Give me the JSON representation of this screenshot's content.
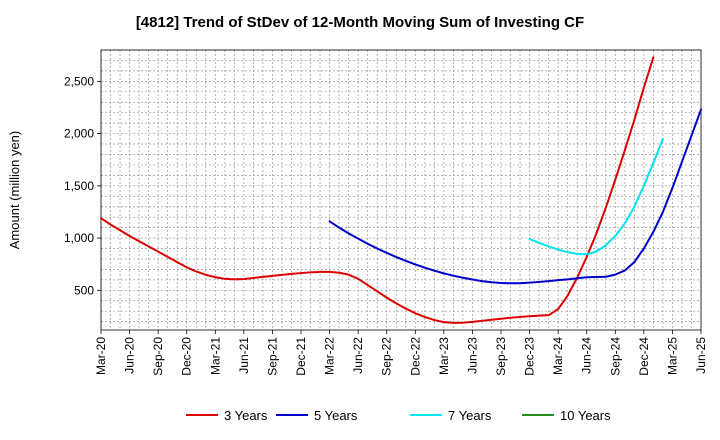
{
  "chart_data": {
    "type": "line",
    "title": "[4812]  Trend of StDev of 12-Month Moving Sum of Investing CF",
    "ylabel": "Amount (million yen)",
    "xlabel": "",
    "x_ticks": [
      "Mar-20",
      "Jun-20",
      "Sep-20",
      "Dec-20",
      "Mar-21",
      "Jun-21",
      "Sep-21",
      "Dec-21",
      "Mar-22",
      "Jun-22",
      "Sep-22",
      "Dec-22",
      "Mar-23",
      "Jun-23",
      "Sep-23",
      "Dec-23",
      "Mar-24",
      "Jun-24",
      "Sep-24",
      "Dec-24",
      "Mar-25",
      "Jun-25"
    ],
    "y_ticks": [
      500,
      1000,
      1500,
      2000,
      2500
    ],
    "y_tick_labels": [
      "500",
      "1,000",
      "1,500",
      "2,000",
      "2,500"
    ],
    "ylim": [
      120,
      2800
    ],
    "grid": true,
    "legend_position": "bottom",
    "series": [
      {
        "name": "3 Years",
        "color": "#dd0000",
        "points": [
          [
            "Mar-20",
            1190
          ],
          [
            "Apr-20",
            1130
          ],
          [
            "May-20",
            1075
          ],
          [
            "Jun-20",
            1020
          ],
          [
            "Jul-20",
            970
          ],
          [
            "Aug-20",
            920
          ],
          [
            "Sep-20",
            870
          ],
          [
            "Oct-20",
            820
          ],
          [
            "Nov-20",
            770
          ],
          [
            "Dec-20",
            720
          ],
          [
            "Jan-21",
            680
          ],
          [
            "Feb-21",
            648
          ],
          [
            "Mar-21",
            625
          ],
          [
            "Apr-21",
            610
          ],
          [
            "May-21",
            605
          ],
          [
            "Jun-21",
            608
          ],
          [
            "Jul-21",
            618
          ],
          [
            "Aug-21",
            628
          ],
          [
            "Sep-21",
            638
          ],
          [
            "Oct-21",
            648
          ],
          [
            "Nov-21",
            657
          ],
          [
            "Dec-21",
            665
          ],
          [
            "Jan-22",
            672
          ],
          [
            "Feb-22",
            676
          ],
          [
            "Mar-22",
            676
          ],
          [
            "Apr-22",
            668
          ],
          [
            "May-22",
            650
          ],
          [
            "Jun-22",
            610
          ],
          [
            "Jul-22",
            550
          ],
          [
            "Aug-22",
            490
          ],
          [
            "Sep-22",
            430
          ],
          [
            "Oct-22",
            375
          ],
          [
            "Nov-22",
            325
          ],
          [
            "Dec-22",
            280
          ],
          [
            "Jan-23",
            245
          ],
          [
            "Feb-23",
            215
          ],
          [
            "Mar-23",
            195
          ],
          [
            "Apr-23",
            188
          ],
          [
            "May-23",
            190
          ],
          [
            "Jun-23",
            198
          ],
          [
            "Jul-23",
            208
          ],
          [
            "Aug-23",
            218
          ],
          [
            "Sep-23",
            228
          ],
          [
            "Oct-23",
            237
          ],
          [
            "Nov-23",
            245
          ],
          [
            "Dec-23",
            252
          ],
          [
            "Jan-24",
            258
          ],
          [
            "Feb-24",
            262
          ],
          [
            "Mar-24",
            320
          ],
          [
            "Apr-24",
            450
          ],
          [
            "May-24",
            620
          ],
          [
            "Jun-24",
            820
          ],
          [
            "Jul-24",
            1040
          ],
          [
            "Aug-24",
            1290
          ],
          [
            "Sep-24",
            1560
          ],
          [
            "Oct-24",
            1840
          ],
          [
            "Nov-24",
            2130
          ],
          [
            "Dec-24",
            2440
          ],
          [
            "Jan-25",
            2730
          ]
        ]
      },
      {
        "name": "5 Years",
        "color": "#0000cc",
        "points": [
          [
            "Mar-22",
            1160
          ],
          [
            "Apr-22",
            1100
          ],
          [
            "May-22",
            1045
          ],
          [
            "Jun-22",
            995
          ],
          [
            "Jul-22",
            945
          ],
          [
            "Aug-22",
            900
          ],
          [
            "Sep-22",
            858
          ],
          [
            "Oct-22",
            818
          ],
          [
            "Nov-22",
            782
          ],
          [
            "Dec-22",
            748
          ],
          [
            "Jan-23",
            716
          ],
          [
            "Feb-23",
            688
          ],
          [
            "Mar-23",
            662
          ],
          [
            "Apr-23",
            640
          ],
          [
            "May-23",
            620
          ],
          [
            "Jun-23",
            603
          ],
          [
            "Jul-23",
            588
          ],
          [
            "Aug-23",
            577
          ],
          [
            "Sep-23",
            570
          ],
          [
            "Oct-23",
            567
          ],
          [
            "Nov-23",
            568
          ],
          [
            "Dec-23",
            573
          ],
          [
            "Jan-24",
            580
          ],
          [
            "Feb-24",
            588
          ],
          [
            "Mar-24",
            597
          ],
          [
            "Apr-24",
            605
          ],
          [
            "May-24",
            615
          ],
          [
            "Jun-24",
            625
          ],
          [
            "Jul-24",
            627
          ],
          [
            "Aug-24",
            630
          ],
          [
            "Sep-24",
            650
          ],
          [
            "Oct-24",
            690
          ],
          [
            "Nov-24",
            770
          ],
          [
            "Dec-24",
            900
          ],
          [
            "Jan-25",
            1060
          ],
          [
            "Feb-25",
            1250
          ],
          [
            "Mar-25",
            1480
          ],
          [
            "Apr-25",
            1730
          ],
          [
            "May-25",
            1980
          ],
          [
            "Jun-25",
            2230
          ]
        ]
      },
      {
        "name": "7 Years",
        "color": "#00e5ee",
        "points": [
          [
            "Dec-23",
            990
          ],
          [
            "Jan-24",
            955
          ],
          [
            "Feb-24",
            920
          ],
          [
            "Mar-24",
            890
          ],
          [
            "Apr-24",
            865
          ],
          [
            "May-24",
            848
          ],
          [
            "Jun-24",
            845
          ],
          [
            "Jul-24",
            870
          ],
          [
            "Aug-24",
            930
          ],
          [
            "Sep-24",
            1020
          ],
          [
            "Oct-24",
            1140
          ],
          [
            "Nov-24",
            1300
          ],
          [
            "Dec-24",
            1500
          ],
          [
            "Jan-25",
            1720
          ],
          [
            "Feb-25",
            1950
          ]
        ]
      },
      {
        "name": "10 Years",
        "color": "#228b22",
        "points": []
      }
    ]
  }
}
